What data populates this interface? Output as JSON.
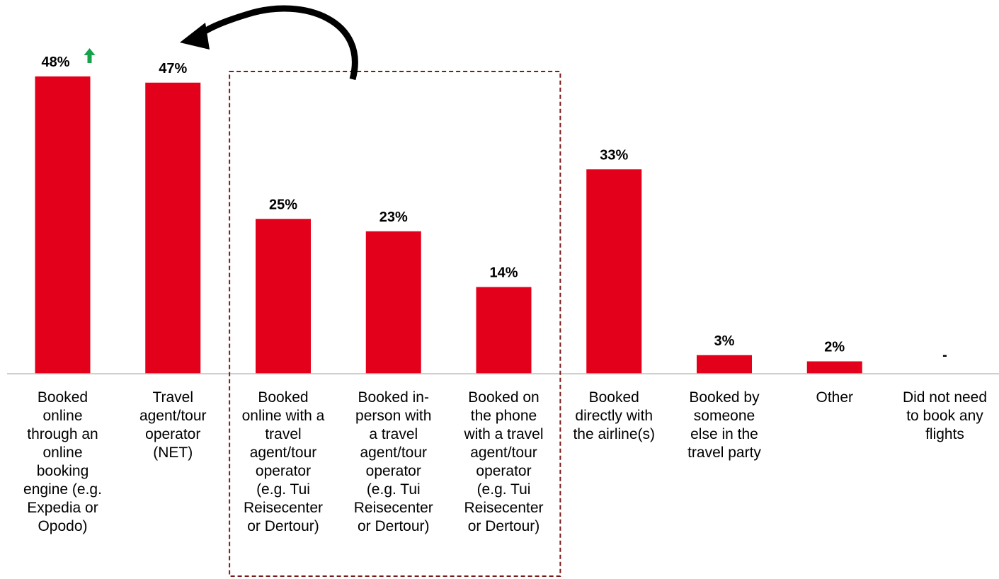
{
  "colors": {
    "bar": "#e3001b",
    "up_arrow": "#16a34a",
    "highlight_box": "#7a1a1a",
    "curved_arrow": "#000000",
    "baseline": "#bfbfbf"
  },
  "chart_data": {
    "type": "bar",
    "title": "",
    "xlabel": "",
    "ylabel": "",
    "ylim": [
      0,
      50
    ],
    "categories": [
      "Booked online through an online booking engine (e.g. Expedia or Opodo)",
      "Travel agent/tour operator (NET)",
      "Booked online with a travel agent/tour operator (e.g. Tui Reisecenter or Dertour)",
      "Booked in-person with a travel agent/tour operator (e.g. Tui Reisecenter or Dertour)",
      "Booked on the phone with a travel agent/tour operator (e.g. Tui Reisecenter or Dertour)",
      "Booked directly with the airline(s)",
      "Booked by someone else in the travel party",
      "Other",
      "Did not need to book any flights"
    ],
    "category_label_lines": [
      [
        "Booked",
        "online",
        "through an",
        "online",
        "booking",
        "engine (e.g.",
        "Expedia or",
        "Opodo)"
      ],
      [
        "Travel",
        "agent/tour",
        "operator",
        "(NET)"
      ],
      [
        "Booked",
        "online with a",
        "travel",
        "agent/tour",
        "operator",
        "(e.g. Tui",
        "Reisecenter",
        "or Dertour)"
      ],
      [
        "Booked in-",
        "person with",
        "a travel",
        "agent/tour",
        "operator",
        "(e.g. Tui",
        "Reisecenter",
        "or Dertour)"
      ],
      [
        "Booked on",
        "the phone",
        "with a travel",
        "agent/tour",
        "operator",
        "(e.g. Tui",
        "Reisecenter",
        "or Dertour)"
      ],
      [
        "Booked",
        "directly with",
        "the airline(s)"
      ],
      [
        "Booked by",
        "someone",
        "else in the",
        "travel party"
      ],
      [
        "Other"
      ],
      [
        "Did not need",
        "to book any",
        "flights"
      ]
    ],
    "values": [
      48,
      47,
      25,
      23,
      14,
      33,
      3,
      2,
      0
    ],
    "value_labels": [
      "48%",
      "47%",
      "25%",
      "23%",
      "14%",
      "33%",
      "3%",
      "2%",
      "-"
    ],
    "annotations": {
      "significance_up_on": "Booked online through an online booking engine (e.g. Expedia or Opodo)",
      "highlighted_group": [
        "Booked online with a travel agent/tour operator (e.g. Tui Reisecenter or Dertour)",
        "Booked in-person with a travel agent/tour operator (e.g. Tui Reisecenter or Dertour)",
        "Booked on the phone with a travel agent/tour operator (e.g. Tui Reisecenter or Dertour)"
      ],
      "highlighted_group_rolls_up_to": "Travel agent/tour operator (NET)"
    },
    "grid": false,
    "legend": "none"
  }
}
